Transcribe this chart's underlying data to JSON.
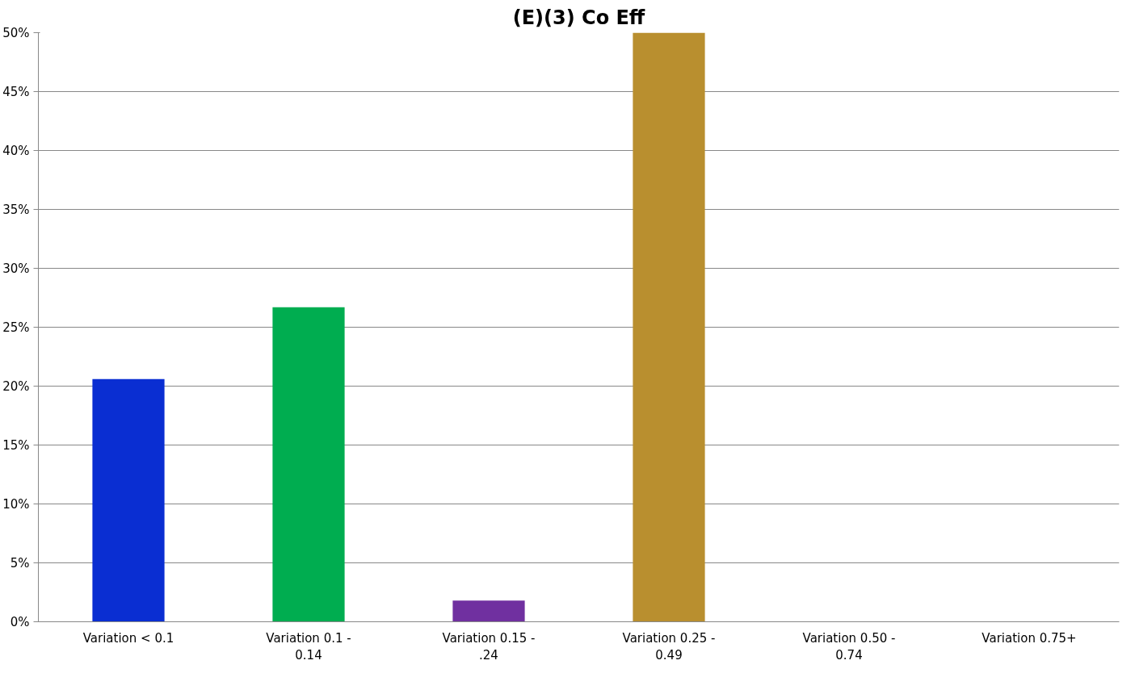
{
  "chart_data": {
    "type": "bar",
    "title": "(E)(3) Co Eff",
    "categories": [
      "Variation < 0.1",
      "Variation 0.1 - 0.14",
      "Variation 0.15 - .24",
      "Variation 0.25 - 0.49",
      "Variation 0.50 - 0.74",
      "Variation 0.75+"
    ],
    "values": [
      20.6,
      26.7,
      1.8,
      50,
      0,
      0
    ],
    "colors": [
      "#0a2ed2",
      "#00ad50",
      "#7030a0",
      "#b98f2f",
      "#4472c4",
      "#4472c4"
    ],
    "ylim": [
      0,
      50
    ],
    "yticks": [
      {
        "value": 0,
        "label": "0%"
      },
      {
        "value": 5,
        "label": "5%"
      },
      {
        "value": 10,
        "label": "10%"
      },
      {
        "value": 15,
        "label": "15%"
      },
      {
        "value": 20,
        "label": "20%"
      },
      {
        "value": 25,
        "label": "25%"
      },
      {
        "value": 30,
        "label": "30%"
      },
      {
        "value": 35,
        "label": "35%"
      },
      {
        "value": 40,
        "label": "40%"
      },
      {
        "value": 45,
        "label": "45%"
      },
      {
        "value": 50,
        "label": "50%"
      }
    ],
    "grid": "y"
  }
}
